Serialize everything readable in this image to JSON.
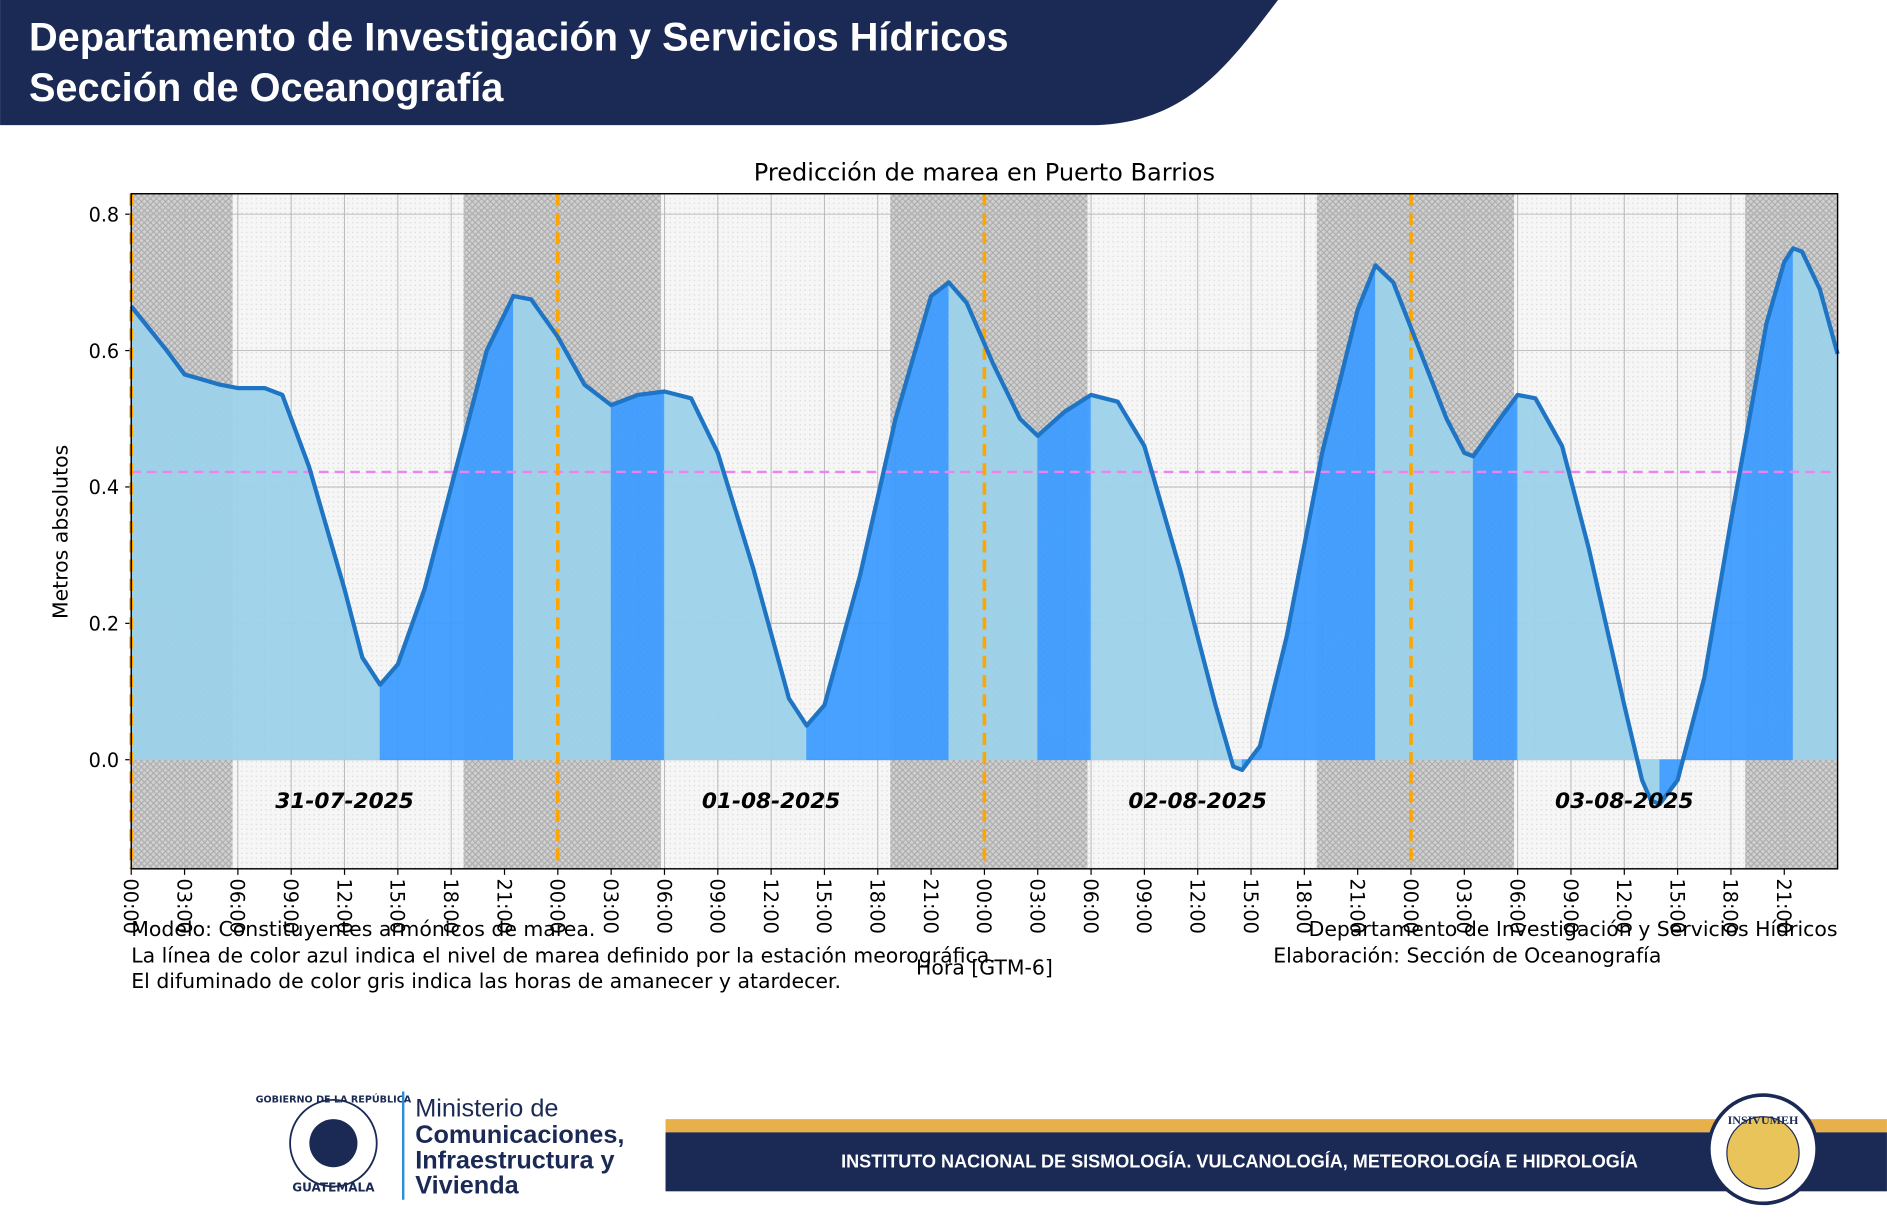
{
  "header": {
    "title_line1": "Departamento de Investigación y Servicios Hídricos",
    "title_line2": "Sección de Oceanografía"
  },
  "chart_data": {
    "type": "line",
    "title": "Predicción de marea en Puerto Barrios",
    "ylabel": "Metros absolutos",
    "xlabel": "Hora [GTM-6]",
    "x": [
      0,
      2,
      3,
      5,
      6,
      7.5,
      8.5,
      10,
      12,
      13,
      14,
      15,
      16.5,
      18,
      20,
      21.5,
      22.5,
      24,
      25.5,
      27,
      28.5,
      30,
      31.5,
      33,
      35,
      37,
      38,
      39,
      41,
      43,
      45,
      46,
      47,
      48.5,
      50,
      51,
      52.5,
      54,
      55.5,
      57,
      59,
      61,
      62,
      62.5,
      63.5,
      65,
      67,
      69,
      70,
      71,
      72.5,
      74,
      75,
      75.5,
      77,
      78,
      79,
      80.5,
      82,
      84,
      85,
      85.5,
      86,
      87,
      88.5,
      90,
      92,
      93,
      93.5,
      94,
      95,
      96
    ],
    "values": [
      0.665,
      0.6,
      0.565,
      0.55,
      0.545,
      0.545,
      0.535,
      0.43,
      0.25,
      0.15,
      0.11,
      0.14,
      0.25,
      0.4,
      0.6,
      0.68,
      0.675,
      0.62,
      0.55,
      0.52,
      0.535,
      0.54,
      0.53,
      0.45,
      0.28,
      0.09,
      0.05,
      0.08,
      0.27,
      0.5,
      0.68,
      0.7,
      0.67,
      0.58,
      0.5,
      0.475,
      0.51,
      0.535,
      0.525,
      0.46,
      0.28,
      0.08,
      -0.01,
      -0.015,
      0.02,
      0.18,
      0.45,
      0.66,
      0.725,
      0.7,
      0.6,
      0.5,
      0.45,
      0.445,
      0.5,
      0.535,
      0.53,
      0.46,
      0.31,
      0.08,
      -0.03,
      -0.06,
      -0.065,
      -0.03,
      0.12,
      0.35,
      0.64,
      0.73,
      0.75,
      0.745,
      0.69,
      0.595
    ],
    "color": "#1f74c4",
    "fill_color": "#9dd3ea",
    "rising_fill_color": "#3f9dff",
    "xlim": [
      0,
      96
    ],
    "ylim": [
      -0.16,
      0.83
    ],
    "xticks": [
      {
        "value": 0,
        "label": "00:00"
      },
      {
        "value": 3,
        "label": "03:00"
      },
      {
        "value": 6,
        "label": "06:00"
      },
      {
        "value": 9,
        "label": "09:00"
      },
      {
        "value": 12,
        "label": "12:00"
      },
      {
        "value": 15,
        "label": "15:00"
      },
      {
        "value": 18,
        "label": "18:00"
      },
      {
        "value": 21,
        "label": "21:00"
      },
      {
        "value": 24,
        "label": "00:00"
      },
      {
        "value": 27,
        "label": "03:00"
      },
      {
        "value": 30,
        "label": "06:00"
      },
      {
        "value": 33,
        "label": "09:00"
      },
      {
        "value": 36,
        "label": "12:00"
      },
      {
        "value": 39,
        "label": "15:00"
      },
      {
        "value": 42,
        "label": "18:00"
      },
      {
        "value": 45,
        "label": "21:00"
      },
      {
        "value": 48,
        "label": "00:00"
      },
      {
        "value": 51,
        "label": "03:00"
      },
      {
        "value": 54,
        "label": "06:00"
      },
      {
        "value": 57,
        "label": "09:00"
      },
      {
        "value": 60,
        "label": "12:00"
      },
      {
        "value": 63,
        "label": "15:00"
      },
      {
        "value": 66,
        "label": "18:00"
      },
      {
        "value": 69,
        "label": "21:00"
      },
      {
        "value": 72,
        "label": "00:00"
      },
      {
        "value": 75,
        "label": "03:00"
      },
      {
        "value": 78,
        "label": "06:00"
      },
      {
        "value": 81,
        "label": "09:00"
      },
      {
        "value": 84,
        "label": "12:00"
      },
      {
        "value": 87,
        "label": "15:00"
      },
      {
        "value": 90,
        "label": "18:00"
      },
      {
        "value": 93,
        "label": "21:00"
      }
    ],
    "yticks": [
      {
        "value": 0,
        "label": "0.0"
      },
      0.2,
      0.4,
      0.6,
      0.8
    ],
    "grid": true,
    "reference_level": 0.422,
    "day_lines": [
      0,
      24,
      48,
      72
    ],
    "night": [
      [
        0,
        5.7
      ],
      [
        18.7,
        29.8
      ],
      [
        42.7,
        53.8
      ],
      [
        66.7,
        77.8
      ],
      [
        90.8,
        96
      ]
    ],
    "date_labels": [
      {
        "x": 12,
        "y": -0.06,
        "label": "31-07-2025"
      },
      {
        "x": 36,
        "y": -0.06,
        "label": "01-08-2025"
      },
      {
        "x": 60,
        "y": -0.06,
        "label": "02-08-2025"
      },
      {
        "x": 84,
        "y": -0.06,
        "label": "03-08-2025"
      }
    ]
  },
  "notes": {
    "left": [
      "Modelo: Constituyentes armónicos de marea.",
      "La línea de color azul indica el nivel de marea definido por la estación meorográfica.",
      "El difuminado de color gris indica las horas de amanecer y atardecer."
    ],
    "right": [
      "Departamento de Investigación y Servicios Hídricos",
      "Elaboración: Sección de Oceanografía"
    ]
  },
  "footer": {
    "seal_top": "GOBIERNO DE LA REPÚBLICA",
    "seal_bottom": "GUATEMALA",
    "ministry": [
      "Ministerio de",
      "Comunicaciones,",
      "Infraestructura y",
      "Vivienda"
    ],
    "banner": "INSTITUTO NACIONAL DE SISMOLOGÍA. VULCANOLOGÍA, METEOROLOGÍA E HIDROLOGÍA",
    "badge": "INSIVUMEH"
  }
}
